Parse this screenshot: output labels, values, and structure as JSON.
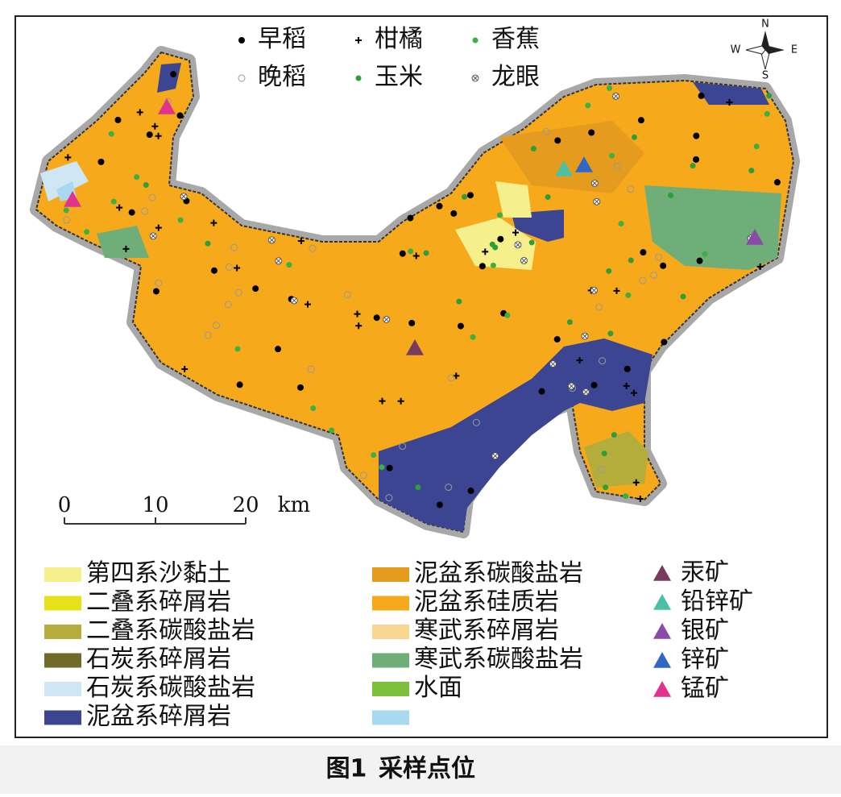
{
  "compass": {
    "n": "N",
    "s": "S",
    "e": "E",
    "w": "W"
  },
  "sample_legend": [
    {
      "label": "早稻",
      "color": "#000000"
    },
    {
      "label": "柑橘",
      "color": "#000000"
    },
    {
      "label": "香蕉",
      "color": "#3cb043"
    },
    {
      "label": "晚稻",
      "color": "#999999"
    },
    {
      "label": "玉米",
      "color": "#2e9e3a"
    },
    {
      "label": "龙眼",
      "color": "#555555"
    }
  ],
  "scale_bar": {
    "ticks": [
      0,
      10,
      20
    ],
    "unit": "km"
  },
  "geology_legend": [
    {
      "label": "第四系沙黏土",
      "color": "#f6f08c"
    },
    {
      "label": "二叠系碎屑岩",
      "color": "#e6e21a"
    },
    {
      "label": "二叠系碳酸盐岩",
      "color": "#b4ad3c"
    },
    {
      "label": "石炭系碎屑岩",
      "color": "#716b2a"
    },
    {
      "label": "石炭系碳酸盐岩",
      "color": "#cfe6f5"
    },
    {
      "label": "泥盆系碎屑岩",
      "color": "#3b4592"
    },
    {
      "label": "泥盆系碳酸盐岩",
      "color": "#e59b1e"
    },
    {
      "label": "泥盆系硅质岩",
      "color": "#f6a91b"
    },
    {
      "label": "寒武系碎屑岩",
      "color": "#f8d790"
    },
    {
      "label": "寒武系碳酸盐岩",
      "color": "#6fae78"
    },
    {
      "label": "水面",
      "color": "#7dbe3a"
    }
  ],
  "water_color": "#a9d9f0",
  "mineral_legend": [
    {
      "label": "汞矿",
      "color": "#7a3a5e"
    },
    {
      "label": "铅锌矿",
      "color": "#4dbfa4"
    },
    {
      "label": "银矿",
      "color": "#8a4aa8"
    },
    {
      "label": "锌矿",
      "color": "#2f68c4"
    },
    {
      "label": "锰矿",
      "color": "#e0338e"
    }
  ],
  "caption": {
    "number": "图1",
    "title": "采样点位"
  }
}
